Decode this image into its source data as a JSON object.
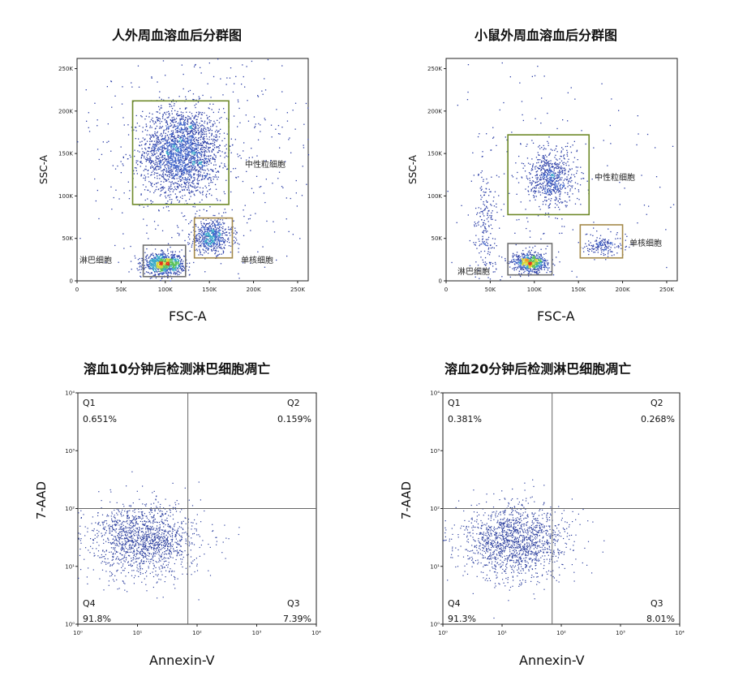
{
  "panels": [
    {
      "title": "人外周血溶血后分群图",
      "chart_data": {
        "type": "scatter",
        "xlabel": "FSC-A",
        "ylabel": "SSC-A",
        "x_ticks": [
          "0",
          "50K",
          "100K",
          "150K",
          "200K",
          "250K"
        ],
        "y_ticks": [
          "0",
          "50K",
          "100K",
          "150K",
          "200K",
          "250K"
        ],
        "xlim": [
          0,
          262000
        ],
        "ylim": [
          0,
          262000
        ],
        "grid": false,
        "gates": [
          {
            "label": "中性粒细胞",
            "x": [
              63000,
              172000
            ],
            "y": [
              90000,
              212000
            ],
            "color": "#6f8a2a"
          },
          {
            "label": "单核细胞",
            "x": [
              133000,
              176000
            ],
            "y": [
              27000,
              74000
            ],
            "color": "#a58a4a"
          },
          {
            "label": "淋巴细胞",
            "x": [
              75000,
              123000
            ],
            "y": [
              5000,
              42000
            ],
            "color": "#707070"
          }
        ],
        "populations": [
          {
            "cx": 118000,
            "cy": 152000,
            "sx": 22000,
            "sy": 26000,
            "n": 2200
          },
          {
            "cx": 152000,
            "cy": 52000,
            "sx": 12000,
            "sy": 10000,
            "n": 600
          },
          {
            "cx": 98000,
            "cy": 20000,
            "sx": 11000,
            "sy": 6000,
            "n": 950
          },
          {
            "cx": 150000,
            "cy": 150000,
            "sx": 90000,
            "sy": 80000,
            "n": 500
          }
        ]
      }
    },
    {
      "title": "小鼠外周血溶血后分群图",
      "chart_data": {
        "type": "scatter",
        "xlabel": "FSC-A",
        "ylabel": "SSC-A",
        "x_ticks": [
          "0",
          "50K",
          "100K",
          "150K",
          "200K",
          "250K"
        ],
        "y_ticks": [
          "0",
          "50K",
          "100K",
          "150K",
          "200K",
          "250K"
        ],
        "xlim": [
          0,
          262000
        ],
        "ylim": [
          0,
          262000
        ],
        "grid": false,
        "gates": [
          {
            "label": "中性粒细胞",
            "x": [
              70000,
              162000
            ],
            "y": [
              78000,
              172000
            ],
            "color": "#6f8a2a"
          },
          {
            "label": "单核细胞",
            "x": [
              152000,
              200000
            ],
            "y": [
              27000,
              66000
            ],
            "color": "#a58a4a"
          },
          {
            "label": "淋巴细胞",
            "x": [
              70000,
              120000
            ],
            "y": [
              7000,
              44000
            ],
            "color": "#707070"
          }
        ],
        "populations": [
          {
            "cx": 118000,
            "cy": 122000,
            "sx": 13000,
            "sy": 17000,
            "n": 650
          },
          {
            "cx": 178000,
            "cy": 42000,
            "sx": 11000,
            "sy": 6000,
            "n": 160
          },
          {
            "cx": 95000,
            "cy": 22000,
            "sx": 10000,
            "sy": 6000,
            "n": 700
          },
          {
            "cx": 45000,
            "cy": 60000,
            "sx": 8000,
            "sy": 40000,
            "n": 220
          },
          {
            "cx": 120000,
            "cy": 120000,
            "sx": 80000,
            "sy": 70000,
            "n": 200
          }
        ]
      }
    },
    {
      "title": "溶血10分钟后检测淋巴细胞凋亡",
      "chart_data": {
        "type": "scatter",
        "xlabel": "Annexin-V",
        "ylabel": "7-AAD",
        "x_ticks": [
          "10⁰",
          "10¹",
          "10²",
          "10³",
          "10⁴"
        ],
        "y_ticks": [
          "10⁰",
          "10¹",
          "10²",
          "10³",
          "10⁴"
        ],
        "xlim": [
          1,
          10000
        ],
        "ylim": [
          1,
          10000
        ],
        "scale": "log",
        "grid": false,
        "quadrant_divider": {
          "x": 70,
          "y": 100
        },
        "quadrants": [
          {
            "name": "Q1",
            "percent": "0.651%",
            "position": "top-left"
          },
          {
            "name": "Q2",
            "percent": "0.159%",
            "position": "top-right"
          },
          {
            "name": "Q3",
            "percent": "7.39%",
            "position": "bottom-right"
          },
          {
            "name": "Q4",
            "percent": "91.8%",
            "position": "bottom-left"
          }
        ],
        "populations": [
          {
            "lcx": 1.1,
            "lcy": 1.45,
            "lsx": 0.45,
            "lsy": 0.32,
            "n": 1500
          }
        ]
      }
    },
    {
      "title": "溶血20分钟后检测淋巴细胞凋亡",
      "chart_data": {
        "type": "scatter",
        "xlabel": "Annexin-V",
        "ylabel": "7-AAD",
        "x_ticks": [
          "10⁰",
          "10¹",
          "10²",
          "10³",
          "10⁴"
        ],
        "y_ticks": [
          "10⁰",
          "10¹",
          "10²",
          "10³",
          "10⁴"
        ],
        "xlim": [
          1,
          10000
        ],
        "ylim": [
          1,
          10000
        ],
        "scale": "log",
        "grid": false,
        "quadrant_divider": {
          "x": 70,
          "y": 100
        },
        "quadrants": [
          {
            "name": "Q1",
            "percent": "0.381%",
            "position": "top-left"
          },
          {
            "name": "Q2",
            "percent": "0.268%",
            "position": "top-right"
          },
          {
            "name": "Q3",
            "percent": "8.01%",
            "position": "bottom-right"
          },
          {
            "name": "Q4",
            "percent": "91.3%",
            "position": "bottom-left"
          }
        ],
        "populations": [
          {
            "lcx": 1.2,
            "lcy": 1.45,
            "lsx": 0.45,
            "lsy": 0.32,
            "n": 1500
          }
        ]
      }
    }
  ]
}
